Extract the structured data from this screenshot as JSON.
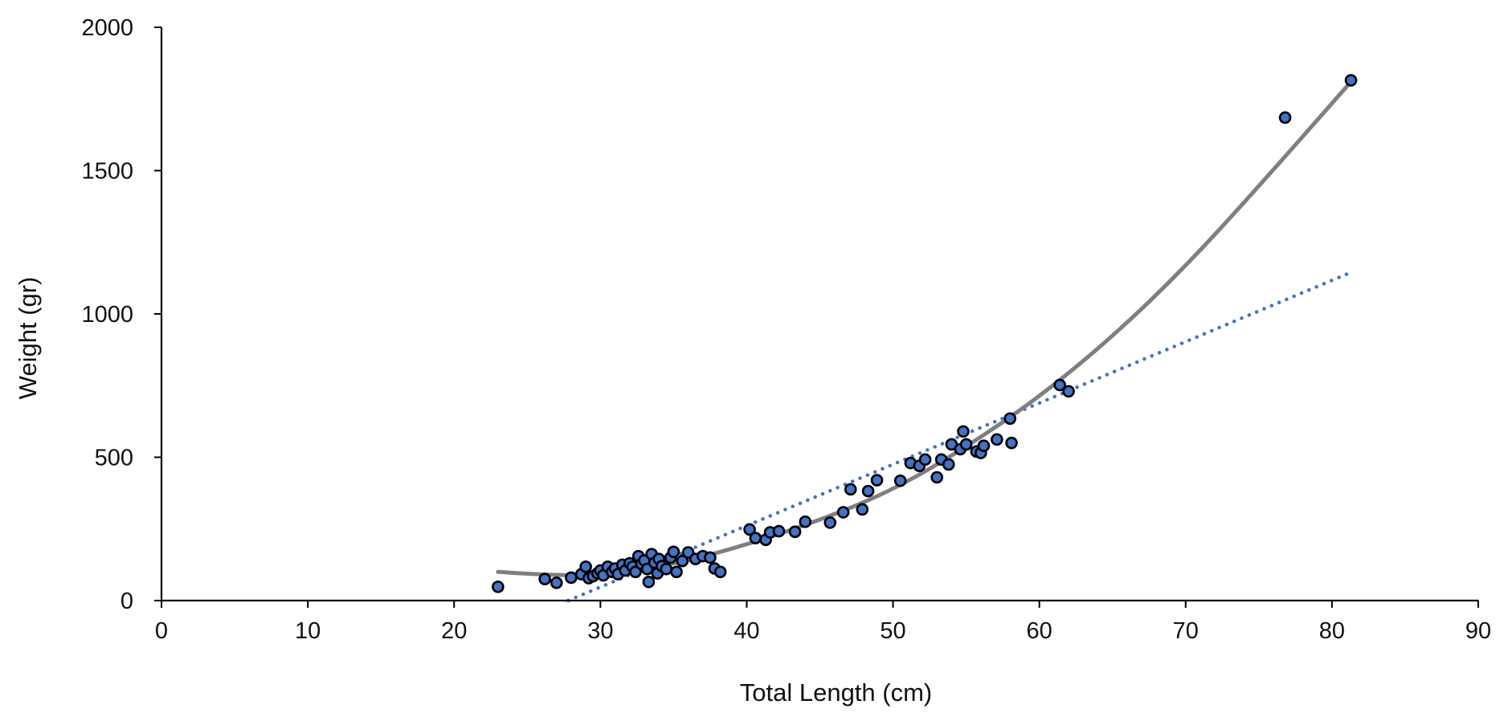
{
  "chart_data": {
    "type": "scatter",
    "title": "",
    "xlabel": "Total Length (cm)",
    "ylabel": "Weight (gr)",
    "xlim": [
      0,
      90
    ],
    "ylim": [
      0,
      2000
    ],
    "xticks": [
      "0",
      "10",
      "20",
      "30",
      "40",
      "50",
      "60",
      "70",
      "80",
      "90"
    ],
    "yticks": [
      "0",
      "500",
      "1000",
      "1500",
      "2000"
    ],
    "grid": false,
    "legend": "none",
    "colors": {
      "points_fill": "#4472C4",
      "points_stroke": "#000000",
      "poly_trend": "#7F7F7F",
      "linear_trend": "#4472C4"
    },
    "series": [
      {
        "type": "scatter",
        "x": [
          23,
          26.2,
          27,
          28,
          28.7,
          29,
          29.2,
          29.5,
          29.8,
          30,
          30.2,
          30.5,
          30.8,
          31,
          31.2,
          31.5,
          31.7,
          32,
          32.2,
          32.4,
          32.6,
          32.8,
          33,
          33.2,
          33.3,
          33.5,
          33.7,
          33.9,
          34,
          34.2,
          34.5,
          34.8,
          35,
          35.2,
          35.6,
          36,
          36.5,
          37,
          37.5,
          37.8,
          38.2,
          40.2,
          40.6,
          41.3,
          41.6,
          42.2,
          43.3,
          44,
          45.7,
          46.6,
          47.1,
          47.9,
          48.3,
          48.9,
          50.5,
          51.2,
          51.8,
          52.2,
          53,
          53.3,
          53.8,
          54,
          54.6,
          54.8,
          55,
          55.7,
          56,
          56.2,
          57.1,
          58,
          58.1,
          61.4,
          62,
          76.8,
          81.3
        ],
        "y": [
          48,
          75,
          62,
          80,
          92,
          118,
          78,
          85,
          95,
          105,
          88,
          118,
          100,
          112,
          92,
          125,
          105,
          130,
          118,
          100,
          155,
          128,
          140,
          110,
          65,
          162,
          132,
          95,
          145,
          120,
          110,
          150,
          170,
          100,
          138,
          168,
          145,
          155,
          150,
          112,
          100,
          248,
          218,
          212,
          238,
          242,
          240,
          275,
          272,
          308,
          388,
          318,
          382,
          420,
          418,
          480,
          470,
          492,
          430,
          492,
          475,
          545,
          528,
          590,
          545,
          520,
          515,
          540,
          562,
          635,
          550,
          752,
          730,
          1685,
          1815
        ]
      },
      {
        "type": "polynomial-trendline",
        "x": [
          23,
          27,
          30,
          35,
          40,
          45,
          50,
          55,
          60,
          65,
          70,
          75,
          81.3
        ],
        "y": [
          100,
          86,
          92,
          125,
          195,
          280,
          385,
          535,
          710,
          920,
          1165,
          1445,
          1810
        ]
      },
      {
        "type": "linear-trendline",
        "x": [
          27.8,
          81.3
        ],
        "y": [
          0,
          1145
        ]
      }
    ]
  }
}
